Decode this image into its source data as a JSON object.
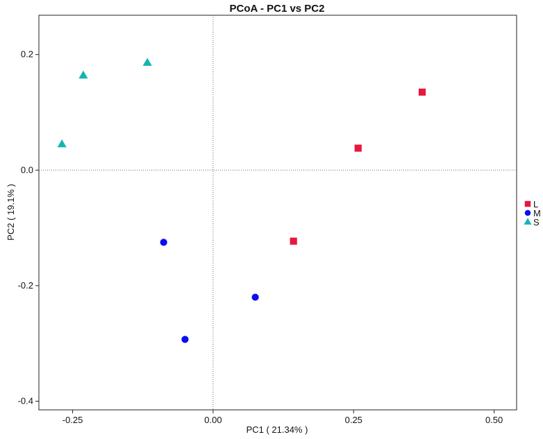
{
  "chart_data": {
    "type": "scatter",
    "title": "PCoA - PC1 vs PC2",
    "xlabel": "PC1 ( 21.34% )",
    "ylabel": "PC2 ( 19.1% )",
    "xlim": [
      -0.31,
      0.54
    ],
    "ylim": [
      -0.415,
      0.268
    ],
    "xticks": [
      {
        "value": -0.25,
        "label": "-0.25"
      },
      {
        "value": 0.0,
        "label": "0.00"
      },
      {
        "value": 0.25,
        "label": "0.25"
      },
      {
        "value": 0.5,
        "label": "0.50"
      }
    ],
    "yticks": [
      {
        "value": 0.2,
        "label": "0.2"
      },
      {
        "value": 0.0,
        "label": "0.0"
      },
      {
        "value": -0.2,
        "label": "-0.2"
      },
      {
        "value": -0.4,
        "label": "-0.4"
      }
    ],
    "reference_lines": {
      "x": 0,
      "y": 0,
      "style": "dotted"
    },
    "grid": false,
    "legend_position": "right",
    "series": [
      {
        "name": "L",
        "marker": "square",
        "color": "#e8173e",
        "points": [
          {
            "x": 0.372,
            "y": 0.135
          },
          {
            "x": 0.258,
            "y": 0.038
          },
          {
            "x": 0.143,
            "y": -0.123
          }
        ]
      },
      {
        "name": "M",
        "marker": "circle",
        "color": "#0a0ef0",
        "points": [
          {
            "x": -0.088,
            "y": -0.125
          },
          {
            "x": 0.075,
            "y": -0.22
          },
          {
            "x": -0.05,
            "y": -0.293
          }
        ]
      },
      {
        "name": "S",
        "marker": "triangle",
        "color": "#14b4b4",
        "points": [
          {
            "x": -0.117,
            "y": 0.186
          },
          {
            "x": -0.231,
            "y": 0.164
          },
          {
            "x": -0.269,
            "y": 0.045
          }
        ]
      }
    ]
  }
}
